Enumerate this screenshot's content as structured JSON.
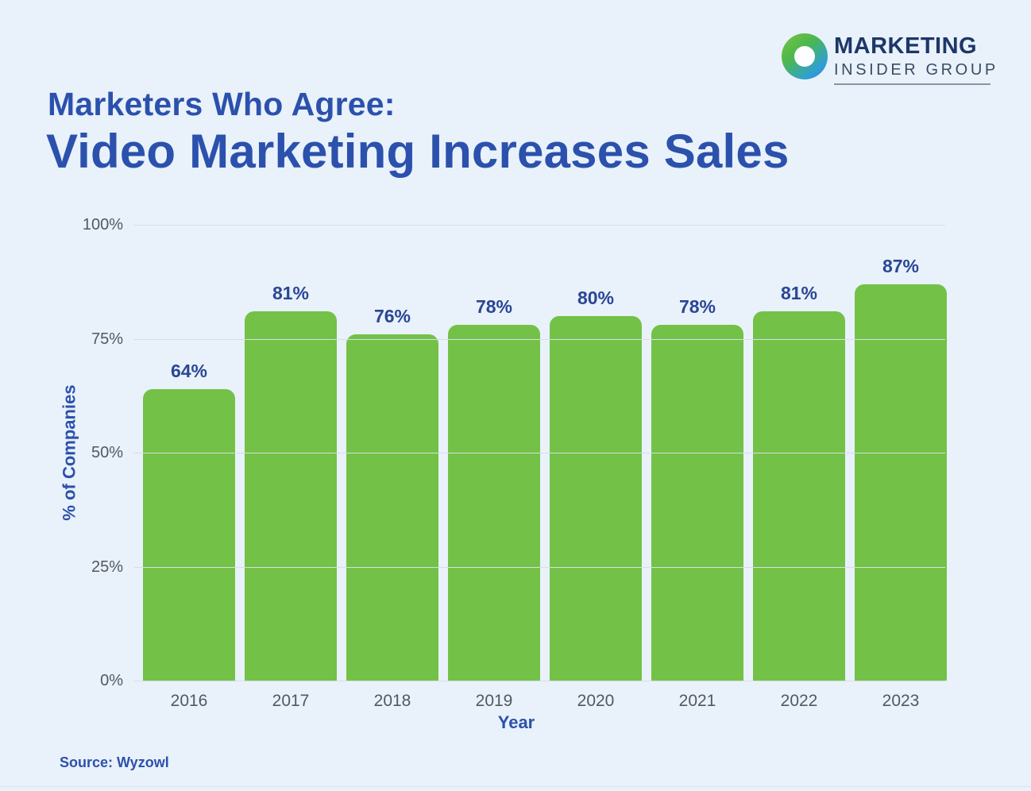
{
  "page": {
    "background": "#e9f1fa"
  },
  "logo": {
    "name": "Marketing Insider Group logo",
    "line1": "MARKETING",
    "line2": "INSIDER GROUP",
    "text_color": "#1c3768",
    "ring_gradient": [
      "#7dc244",
      "#2f7fc1"
    ]
  },
  "header": {
    "kicker": "Marketers Who Agree:",
    "title": "Video Marketing Increases Sales",
    "color": "#2b51ad"
  },
  "chart_data": {
    "type": "bar",
    "title": "Marketers Who Agree: Video Marketing Increases Sales",
    "categories": [
      "2016",
      "2017",
      "2018",
      "2019",
      "2020",
      "2021",
      "2022",
      "2023"
    ],
    "values": [
      64,
      81,
      76,
      78,
      80,
      78,
      81,
      87
    ],
    "value_labels": [
      "64%",
      "81%",
      "76%",
      "78%",
      "80%",
      "78%",
      "81%",
      "87%"
    ],
    "xlabel": "Year",
    "ylabel": "% of Companies",
    "ylim": [
      0,
      100
    ],
    "ytick_values": [
      100,
      75,
      50,
      25,
      0
    ],
    "ytick_labels": [
      "100%",
      "75%",
      "50%",
      "25%",
      "0%"
    ],
    "grid": true,
    "legend": "none",
    "bar_color": "#73c247",
    "value_label_color": "#2a4695",
    "tick_color": "#54585f",
    "gridline_color": "#d8dee6"
  },
  "footer": {
    "source": "Source: Wyzowl"
  }
}
